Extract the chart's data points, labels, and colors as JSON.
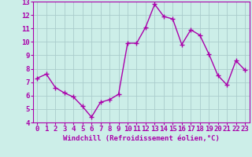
{
  "x": [
    0,
    1,
    2,
    3,
    4,
    5,
    6,
    7,
    8,
    9,
    10,
    11,
    12,
    13,
    14,
    15,
    16,
    17,
    18,
    19,
    20,
    21,
    22,
    23
  ],
  "y": [
    7.3,
    7.6,
    6.6,
    6.2,
    5.9,
    5.2,
    4.4,
    5.5,
    5.7,
    6.1,
    9.9,
    9.9,
    11.1,
    12.8,
    11.9,
    11.7,
    9.8,
    10.9,
    10.5,
    9.1,
    7.5,
    6.8,
    8.6,
    7.9
  ],
  "line_color": "#aa00aa",
  "marker": "+",
  "marker_size": 4,
  "marker_lw": 1.0,
  "line_width": 1.0,
  "bg_color": "#cceee8",
  "grid_color": "#aacccc",
  "xlabel": "Windchill (Refroidissement éolien,°C)",
  "xlim": [
    -0.5,
    23.5
  ],
  "ylim": [
    4,
    13
  ],
  "yticks": [
    4,
    5,
    6,
    7,
    8,
    9,
    10,
    11,
    12,
    13
  ],
  "xticks": [
    0,
    1,
    2,
    3,
    4,
    5,
    6,
    7,
    8,
    9,
    10,
    11,
    12,
    13,
    14,
    15,
    16,
    17,
    18,
    19,
    20,
    21,
    22,
    23
  ],
  "tick_color": "#aa00aa",
  "label_color": "#aa00aa",
  "font_size_label": 6.5,
  "font_size_tick": 6.5
}
